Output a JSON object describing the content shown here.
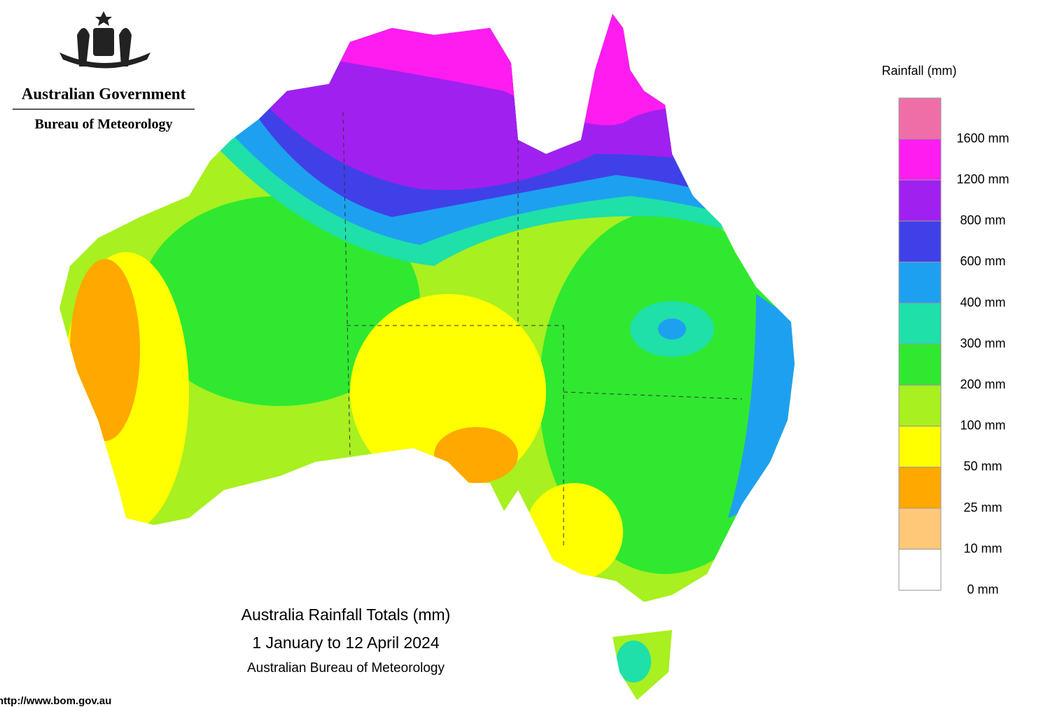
{
  "header": {
    "government": "Australian Government",
    "agency": "Bureau of Meteorology"
  },
  "title": {
    "line1": "Australia Rainfall Totals (mm)",
    "line2": "1 January to 12 April 2024",
    "line3": "Australian Bureau of Meteorology"
  },
  "url": "http://www.bom.gov.au",
  "legend": {
    "title": "Rainfall (mm)",
    "colors": [
      "#f06ea8",
      "#ff1cf0",
      "#a020f0",
      "#4040e8",
      "#1ea0f0",
      "#1ee0a8",
      "#30e830",
      "#a8f020",
      "#ffff00",
      "#ffa800",
      "#ffc878",
      "#ffffff"
    ],
    "labels": [
      "1600 mm",
      "1200 mm",
      "800 mm",
      "600 mm",
      "400 mm",
      "300 mm",
      "200 mm",
      "100 mm",
      "50 mm",
      "25 mm",
      "10 mm",
      "0 mm"
    ]
  }
}
